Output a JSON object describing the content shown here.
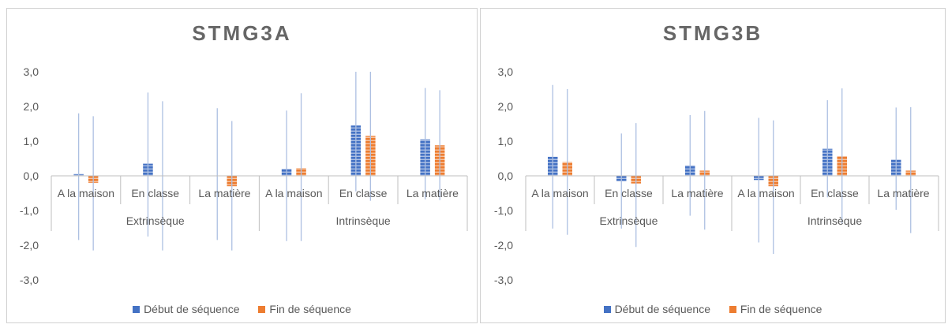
{
  "chart_data": [
    {
      "type": "bar",
      "title": "STMG3A",
      "ylim": [
        -3,
        3
      ],
      "yticks": [
        "-3,0",
        "-2,0",
        "-1,0",
        "0,0",
        "1,0",
        "2,0",
        "3,0"
      ],
      "groups": [
        "Extrinsèque",
        "Intrinsèque"
      ],
      "categories": [
        "A la maison",
        "En classe",
        "La matière",
        "A la maison",
        "En classe",
        "La matière"
      ],
      "series": [
        {
          "name": "Début de séquence",
          "color": "#4472C4",
          "values": [
            0.05,
            0.35,
            0.0,
            0.2,
            1.45,
            1.05
          ],
          "error_high": [
            1.8,
            2.4,
            1.95,
            1.88,
            3.0,
            2.53
          ],
          "error_low": [
            -1.85,
            -1.75,
            -1.85,
            -1.88,
            -0.45,
            -0.68
          ]
        },
        {
          "name": "Fin de séquence",
          "color": "#ED7D31",
          "values": [
            -0.2,
            0.0,
            -0.3,
            0.22,
            1.15,
            0.88
          ],
          "error_high": [
            1.72,
            2.15,
            1.58,
            2.38,
            3.0,
            2.47
          ],
          "error_low": [
            -2.15,
            -2.15,
            -2.15,
            -1.88,
            -0.72,
            -0.7
          ]
        }
      ],
      "legend_position": "bottom",
      "grid": false
    },
    {
      "type": "bar",
      "title": "STMG3B",
      "ylim": [
        -3,
        3
      ],
      "yticks": [
        "-3,0",
        "-2,0",
        "-1,0",
        "0,0",
        "1,0",
        "2,0",
        "3,0"
      ],
      "groups": [
        "Extrinsèque",
        "Intrinsèque"
      ],
      "categories": [
        "A la maison",
        "En classe",
        "La matière",
        "A la maison",
        "En classe",
        "La matière"
      ],
      "series": [
        {
          "name": "Début de séquence",
          "color": "#4472C4",
          "values": [
            0.55,
            -0.15,
            0.3,
            -0.12,
            0.78,
            0.47
          ],
          "error_high": [
            2.62,
            1.22,
            1.75,
            1.67,
            2.18,
            1.97
          ],
          "error_low": [
            -1.52,
            -1.52,
            -1.15,
            -1.92,
            -0.62,
            -0.98
          ]
        },
        {
          "name": "Fin de séquence",
          "color": "#ED7D31",
          "values": [
            0.4,
            -0.22,
            0.15,
            -0.3,
            0.57,
            0.15
          ],
          "error_high": [
            2.5,
            1.52,
            1.87,
            1.6,
            2.52,
            1.98
          ],
          "error_low": [
            -1.7,
            -2.05,
            -1.55,
            -2.25,
            -1.38,
            -1.65
          ]
        }
      ],
      "legend_position": "bottom",
      "grid": false
    }
  ]
}
